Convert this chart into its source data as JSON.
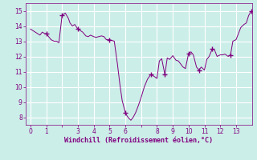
{
  "xlabel": "Windchill (Refroidissement éolien,°C)",
  "bg_color": "#cceee8",
  "line_color": "#800080",
  "xlim": [
    -0.3,
    14.0
  ],
  "ylim": [
    7.5,
    15.5
  ],
  "xticks": [
    0,
    1,
    2,
    3,
    4,
    5,
    6,
    7,
    8,
    9,
    10,
    11,
    12,
    13
  ],
  "xtick_labels": [
    "0",
    "1",
    "",
    "3",
    "4",
    "5",
    "6",
    "",
    "8",
    "9",
    "10",
    "11",
    "12",
    "13"
  ],
  "yticks": [
    8,
    9,
    10,
    11,
    12,
    13,
    14,
    15
  ],
  "x": [
    0.0,
    0.15,
    0.3,
    0.45,
    0.6,
    0.75,
    0.9,
    1.0,
    1.15,
    1.3,
    1.5,
    1.65,
    1.8,
    2.0,
    2.2,
    2.4,
    2.5,
    2.65,
    2.8,
    3.0,
    3.15,
    3.3,
    3.5,
    3.65,
    3.8,
    4.0,
    4.15,
    4.3,
    4.5,
    4.65,
    4.8,
    5.0,
    5.15,
    5.3,
    5.5,
    5.65,
    5.8,
    6.0,
    6.1,
    6.2,
    6.35,
    6.5,
    6.65,
    6.8,
    7.0,
    7.2,
    7.4,
    7.6,
    7.8,
    8.0,
    8.15,
    8.3,
    8.5,
    8.65,
    8.8,
    9.0,
    9.1,
    9.2,
    9.35,
    9.5,
    9.65,
    9.8,
    10.0,
    10.15,
    10.3,
    10.5,
    10.65,
    10.8,
    11.0,
    11.15,
    11.3,
    11.5,
    11.65,
    11.8,
    12.0,
    12.15,
    12.3,
    12.5,
    12.65,
    12.8,
    13.0,
    13.15,
    13.3,
    13.5,
    13.65,
    13.8,
    13.95
  ],
  "y": [
    13.8,
    13.7,
    13.6,
    13.5,
    13.4,
    13.6,
    13.5,
    13.5,
    13.3,
    13.1,
    13.0,
    13.0,
    12.9,
    14.7,
    14.85,
    14.5,
    14.2,
    14.0,
    14.1,
    13.8,
    13.7,
    13.6,
    13.35,
    13.3,
    13.4,
    13.3,
    13.25,
    13.3,
    13.35,
    13.3,
    13.1,
    13.1,
    13.05,
    13.0,
    11.5,
    10.2,
    9.1,
    8.3,
    8.1,
    7.95,
    7.8,
    8.0,
    8.3,
    8.7,
    9.3,
    10.0,
    10.5,
    10.8,
    10.7,
    10.55,
    11.7,
    11.85,
    10.8,
    11.9,
    11.8,
    12.05,
    11.9,
    11.75,
    11.7,
    11.5,
    11.3,
    11.2,
    12.2,
    12.3,
    12.1,
    11.3,
    11.1,
    11.3,
    11.1,
    11.8,
    12.0,
    12.5,
    12.4,
    12.0,
    12.1,
    12.1,
    12.15,
    12.0,
    12.1,
    13.0,
    13.1,
    13.5,
    13.9,
    14.1,
    14.2,
    14.7,
    14.95
  ],
  "marked_x": [
    1.0,
    2.0,
    3.0,
    5.0,
    6.0,
    7.6,
    8.5,
    10.0,
    10.65,
    11.5,
    12.65,
    13.95
  ],
  "marked_y": [
    13.5,
    14.7,
    13.8,
    13.1,
    8.3,
    10.8,
    10.8,
    12.2,
    11.1,
    12.5,
    12.1,
    14.95
  ]
}
